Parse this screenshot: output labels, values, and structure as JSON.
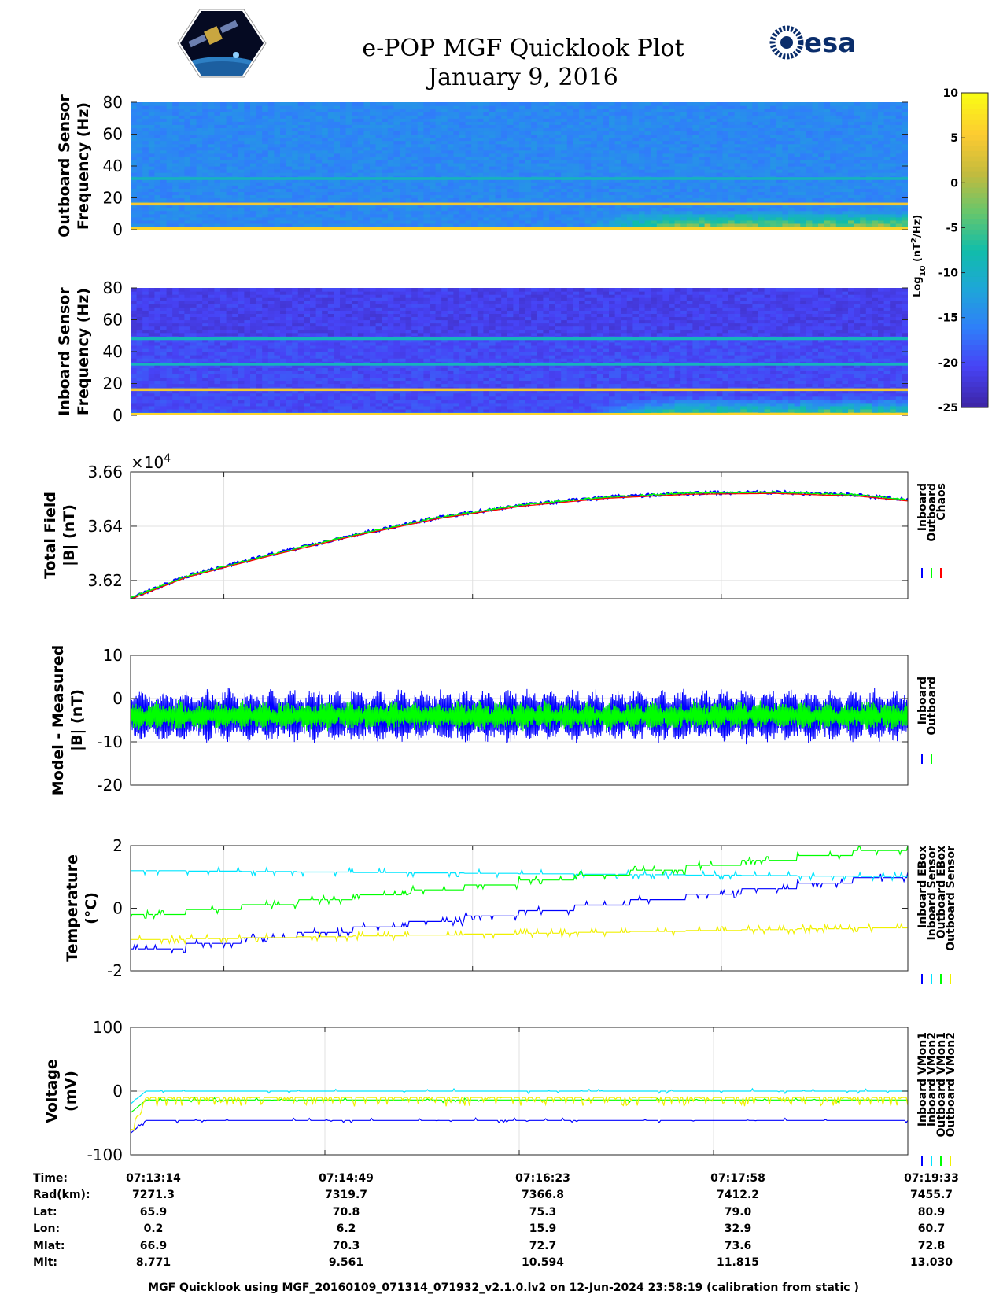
{
  "title": "e-POP MGF Quicklook Plot",
  "date": "January 9, 2016",
  "logo_right": "esa",
  "colorbar": {
    "label_base": "Log",
    "label_sub": "10",
    "label_unit_pre": " (nT",
    "label_sup": "2",
    "label_unit_post": "/Hz)",
    "ticks": [
      "10",
      "5",
      "0",
      "-5",
      "-10",
      "-15",
      "-20",
      "-25"
    ],
    "range": [
      -25,
      10
    ],
    "colors": [
      "#3e26a8",
      "#4743f6",
      "#2f7ff9",
      "#1ea6d8",
      "#11bdaa",
      "#68c66b",
      "#c4bb3d",
      "#fdcb31",
      "#f9fb15"
    ]
  },
  "chart_data": [
    {
      "type": "heatmap",
      "ylabel_1": "Outboard Sensor",
      "ylabel_2": "Frequency (Hz)",
      "yticks": [
        "80",
        "60",
        "40",
        "20",
        "0"
      ],
      "ylim": [
        0,
        80
      ],
      "lines_hz": [
        16,
        32
      ],
      "low_freq_activity_start_fraction": 0.58
    },
    {
      "type": "heatmap",
      "ylabel_1": "Inboard Sensor",
      "ylabel_2": "Frequency (Hz)",
      "yticks": [
        "80",
        "60",
        "40",
        "20",
        "0"
      ],
      "ylim": [
        0,
        80
      ],
      "lines_hz": [
        16,
        32,
        48
      ],
      "low_freq_activity_start_fraction": 0.58
    },
    {
      "type": "line",
      "ylabel_1": "Total Field",
      "ylabel_2": "|B| (nT)",
      "exponent": "×10",
      "exponent_sup": "4",
      "yticks": [
        "3.66",
        "3.64",
        "3.62"
      ],
      "ylim": [
        3.6133,
        3.66
      ],
      "x_time": [
        "07:13:14",
        "07:13:41",
        "07:14:22",
        "07:15:03",
        "07:15:44",
        "07:16:25",
        "07:17:06",
        "07:17:47",
        "07:18:28",
        "07:19:09",
        "07:19:33"
      ],
      "y": [
        3.6135,
        3.6215,
        3.6295,
        3.6368,
        3.6432,
        3.6478,
        3.6507,
        3.6522,
        3.6525,
        3.6515,
        3.6497
      ],
      "legend": [
        "Inboard",
        "Outboard",
        "Chaos"
      ],
      "legend_colors": [
        "#0000ff",
        "#00ff00",
        "#ff0000"
      ]
    },
    {
      "type": "line",
      "ylabel_1": "Model - Measured",
      "ylabel_2": "|B| (nT)",
      "yticks": [
        "10",
        "0",
        "-10",
        "-20"
      ],
      "ylim": [
        -20,
        10
      ],
      "series": [
        {
          "name": "Inboard",
          "color": "#0000ff",
          "mean": -4,
          "amplitude_early": 12,
          "amplitude_late": 12
        },
        {
          "name": "Outboard",
          "color": "#00ff00",
          "mean": -4,
          "amplitude_early": 6,
          "amplitude_late": 6
        }
      ],
      "legend": [
        "Inboard",
        "Outboard"
      ],
      "legend_colors": [
        "#0000ff",
        "#00ff00"
      ]
    },
    {
      "type": "line",
      "ylabel_1": "Temperature",
      "ylabel_2": "(°C)",
      "yticks": [
        "2",
        "0",
        "-2"
      ],
      "ylim": [
        -2,
        2
      ],
      "series": [
        {
          "name": "Inboard EBox",
          "color": "#0000ff",
          "start": -1.3,
          "end": 1.15
        },
        {
          "name": "Inboard Sensor",
          "color": "#00e5ff",
          "start": 1.2,
          "end": 1.0
        },
        {
          "name": "Outboard EBox",
          "color": "#00ff00",
          "start": -0.2,
          "end": 2.0
        },
        {
          "name": "Outboard Sensor",
          "color": "#f0f000",
          "start": -1.0,
          "end": -0.6
        }
      ],
      "legend": [
        "Inboard EBox",
        "Inboard Sensor",
        "Outboard EBox",
        "Outboard Sensor"
      ],
      "legend_colors": [
        "#0000ff",
        "#00e5ff",
        "#00ff00",
        "#f0f000"
      ]
    },
    {
      "type": "line",
      "ylabel_1": "Voltage",
      "ylabel_2": "(mV)",
      "yticks": [
        "100",
        "0",
        "-100"
      ],
      "ylim": [
        -100,
        100
      ],
      "series": [
        {
          "name": "Inboard VMon1",
          "color": "#0000ff",
          "level": -46
        },
        {
          "name": "Inboard VMon2",
          "color": "#00e5ff",
          "level": 0
        },
        {
          "name": "Outboard VMon1",
          "color": "#00ff00",
          "level": -14
        },
        {
          "name": "Outboard VMon2",
          "color": "#f0f000",
          "level": -10
        }
      ],
      "legend": [
        "Inboard VMon1",
        "Inboard VMon2",
        "Outboard VMon1",
        "Outboard VMon2"
      ],
      "legend_colors": [
        "#0000ff",
        "#00e5ff",
        "#00ff00",
        "#f0f000"
      ]
    }
  ],
  "ephemeris": {
    "labels": [
      "Time:",
      "Rad(km):",
      "Lat:",
      "Lon:",
      "Mlat:",
      "Mlt:"
    ],
    "columns": [
      [
        "07:13:14",
        "7271.3",
        "65.9",
        "0.2",
        "66.9",
        "8.771"
      ],
      [
        "07:14:49",
        "7319.7",
        "70.8",
        "6.2",
        "70.3",
        "9.561"
      ],
      [
        "07:16:23",
        "7366.8",
        "75.3",
        "15.9",
        "72.7",
        "10.594"
      ],
      [
        "07:17:58",
        "7412.2",
        "79.0",
        "32.9",
        "73.6",
        "11.815"
      ],
      [
        "07:19:33",
        "7455.7",
        "80.9",
        "60.7",
        "72.8",
        "13.030"
      ]
    ]
  },
  "footer": "MGF Quicklook using MGF_20160109_071314_071932_v2.1.0.lv2 on 12-Jun-2024 23:58:19 (calibration from static )"
}
